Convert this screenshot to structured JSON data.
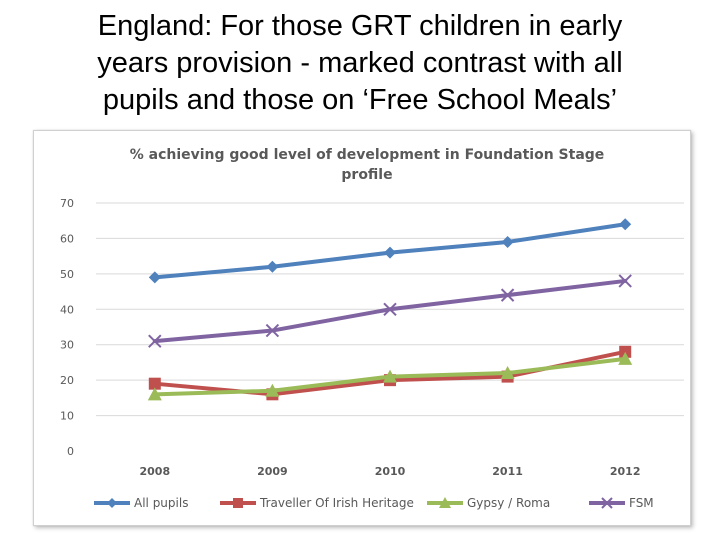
{
  "slide": {
    "title_lines": [
      "England: For those GRT children in early",
      "years provision - marked contrast with all",
      "pupils and those on ‘Free School Meals’"
    ]
  },
  "chart_data": {
    "type": "line",
    "title_lines": [
      "% achieving good level of development in Foundation Stage",
      "profile"
    ],
    "categories": [
      "2008",
      "2009",
      "2010",
      "2011",
      "2012"
    ],
    "ylim": [
      0,
      70
    ],
    "yticks": [
      0,
      10,
      20,
      30,
      40,
      50,
      60,
      70
    ],
    "grid": true,
    "legend_position": "bottom",
    "series": [
      {
        "name": "All pupils",
        "values": [
          49,
          52,
          56,
          59,
          64
        ],
        "color": "#4f81bd",
        "marker": "diamond"
      },
      {
        "name": "Traveller Of Irish Heritage",
        "values": [
          19,
          16,
          20,
          21,
          28
        ],
        "color": "#c0504d",
        "marker": "square"
      },
      {
        "name": "Gypsy / Roma",
        "values": [
          16,
          17,
          21,
          22,
          26
        ],
        "color": "#9bbb59",
        "marker": "triangle"
      },
      {
        "name": "FSM",
        "values": [
          31,
          34,
          40,
          44,
          48
        ],
        "color": "#8064a2",
        "marker": "x"
      }
    ]
  }
}
